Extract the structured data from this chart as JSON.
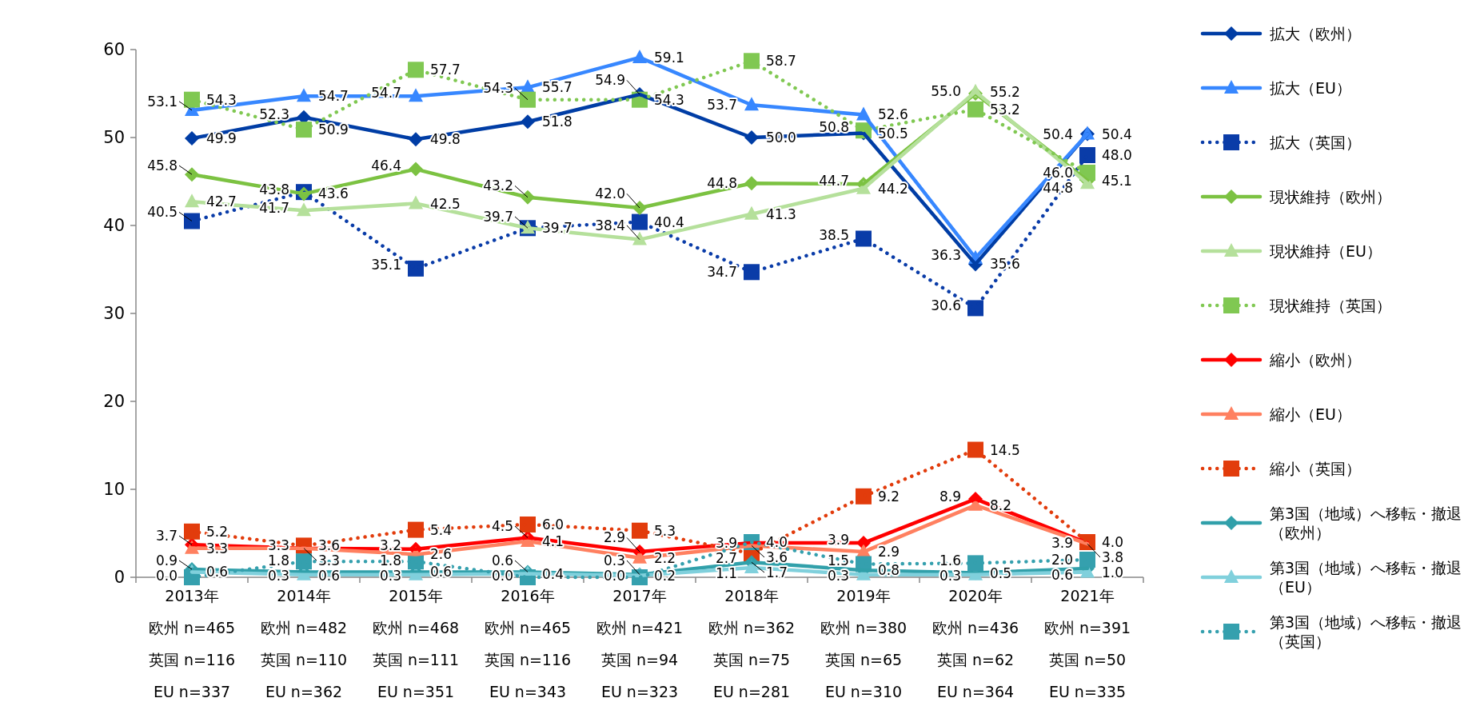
{
  "chart_data": {
    "type": "line",
    "categories": [
      "2013年",
      "2014年",
      "2015年",
      "2016年",
      "2017年",
      "2018年",
      "2019年",
      "2020年",
      "2021年"
    ],
    "annotations": [
      "欧州 n=465",
      "英国 n=116",
      "EU n=337",
      "欧州 n=482",
      "英国 n=110",
      "EU n=362",
      "欧州 n=468",
      "英国 n=111",
      "EU n=351",
      "欧州 n=465",
      "英国 n=116",
      "EU n=343",
      "欧州 n=421",
      "英国 n=94",
      "EU n=323",
      "欧州 n=362",
      "英国 n=75",
      "EU n=281",
      "欧州 n=380",
      "英国 n=65",
      "EU n=310",
      "欧州 n=436",
      "英国 n=62",
      "EU n=364",
      "欧州 n=391",
      "英国 n=50",
      "EU n=335"
    ],
    "ylim": [
      0,
      60
    ],
    "yticks": [
      0,
      10,
      20,
      30,
      40,
      50,
      60
    ],
    "grid": false,
    "legend": "right",
    "series": [
      {
        "name": "拡大（欧州）",
        "color": "#003da5",
        "marker": "diamond",
        "line_style": "solid",
        "values": [
          49.9,
          52.3,
          49.8,
          51.8,
          54.9,
          50.0,
          50.5,
          35.6,
          50.4
        ],
        "value_labels": [
          "49.9",
          "52.3",
          "49.8",
          "51.8",
          "54.9",
          "50.0",
          "50.5",
          "35.6",
          "50.4"
        ]
      },
      {
        "name": "拡大（EU）",
        "color": "#3787ff",
        "marker": "triangle",
        "line_style": "solid",
        "values": [
          53.1,
          54.7,
          54.7,
          55.7,
          59.1,
          53.7,
          52.6,
          36.3,
          50.4
        ],
        "value_labels": [
          "53.1",
          "54.7",
          "54.7",
          "55.7",
          "59.1",
          "53.7",
          "52.6",
          "36.3",
          "50.4"
        ]
      },
      {
        "name": "拡大（英国）",
        "color": "#0a3ca8",
        "marker": "square",
        "line_style": "dotted",
        "values": [
          40.5,
          43.8,
          35.1,
          39.7,
          40.4,
          34.7,
          38.5,
          30.6,
          48.0
        ],
        "value_labels": [
          "40.5",
          "43.8",
          "35.1",
          "39.7",
          "40.4",
          "34.7",
          "38.5",
          "30.6",
          "48.0"
        ]
      },
      {
        "name": "現状維持（欧州）",
        "color": "#7cc242",
        "marker": "diamond",
        "line_style": "solid",
        "values": [
          45.8,
          43.6,
          46.4,
          43.2,
          42.0,
          44.8,
          44.7,
          55.0,
          45.1
        ],
        "value_labels": [
          "45.8",
          "43.6",
          "46.4",
          "43.2",
          "42.0",
          "44.8",
          "44.7",
          "55.0",
          "45.1"
        ]
      },
      {
        "name": "現状維持（EU）",
        "color": "#b5e09b",
        "marker": "triangle",
        "line_style": "solid",
        "values": [
          42.7,
          41.7,
          42.5,
          39.7,
          38.4,
          41.3,
          44.2,
          55.2,
          44.8
        ],
        "value_labels": [
          "42.7",
          "41.7",
          "42.5",
          "39.7",
          "38.4",
          "41.3",
          "44.2",
          "55.2",
          "44.8"
        ]
      },
      {
        "name": "現状維持（英国）",
        "color": "#80c852",
        "marker": "square",
        "line_style": "dotted",
        "values": [
          54.3,
          50.9,
          57.7,
          54.3,
          54.3,
          58.7,
          50.8,
          53.2,
          46.0
        ],
        "value_labels": [
          "54.3",
          "50.9",
          "57.7",
          "54.3",
          "54.3",
          "58.7",
          "50.8",
          "53.2",
          "46.0"
        ]
      },
      {
        "name": "縮小（欧州）",
        "color": "#ff0000",
        "marker": "diamond",
        "line_style": "solid",
        "values": [
          3.7,
          3.3,
          3.2,
          4.5,
          2.9,
          3.9,
          3.9,
          8.9,
          3.9
        ],
        "value_labels": [
          "3.7",
          "3.3",
          "3.2",
          "4.5",
          "2.9",
          "3.9",
          "3.9",
          "8.9",
          "3.9"
        ]
      },
      {
        "name": "縮小（EU）",
        "color": "#ff8060",
        "marker": "triangle",
        "line_style": "solid",
        "values": [
          3.3,
          3.3,
          2.6,
          4.1,
          2.2,
          3.6,
          2.9,
          8.2,
          3.8
        ],
        "value_labels": [
          "3.3",
          "3.3",
          "2.6",
          "4.1",
          "2.2",
          "3.6",
          "2.9",
          "8.2",
          "3.8"
        ]
      },
      {
        "name": "縮小（英国）",
        "color": "#e23c0c",
        "marker": "square",
        "line_style": "dotted",
        "values": [
          5.2,
          3.6,
          5.4,
          6.0,
          5.3,
          2.7,
          9.2,
          14.5,
          4.0
        ],
        "value_labels": [
          "5.2",
          "3.6",
          "5.4",
          "6.0",
          "5.3",
          "2.7",
          "9.2",
          "14.5",
          "4.0"
        ]
      },
      {
        "name": "第3国（地域）へ移転・撤退（欧州）",
        "color": "#31a0aa",
        "marker": "diamond",
        "line_style": "solid",
        "values": [
          0.9,
          0.6,
          0.6,
          0.6,
          0.3,
          1.7,
          0.8,
          0.5,
          1.0
        ],
        "value_labels": [
          "0.9",
          "0.6",
          "0.6",
          "0.6",
          "0.3",
          "1.7",
          "0.8",
          "0.5",
          "1.0"
        ]
      },
      {
        "name": "第3国（地域）へ移転・撤退（EU）",
        "color": "#80d0dc",
        "marker": "triangle",
        "line_style": "solid",
        "values": [
          0.6,
          0.3,
          0.3,
          0.4,
          0.2,
          1.1,
          0.3,
          0.3,
          0.6
        ],
        "value_labels": [
          "0.6",
          "0.3",
          "0.3",
          "0.4",
          "0.2",
          "1.1",
          "0.3",
          "0.3",
          "0.6"
        ]
      },
      {
        "name": "第3国（地域）へ移転・撤退（英国）",
        "color": "#35a0ae",
        "marker": "square",
        "line_style": "dotted",
        "values": [
          0.0,
          1.8,
          1.8,
          0.0,
          0.0,
          4.0,
          1.5,
          1.6,
          2.0
        ],
        "value_labels": [
          "0.0",
          "1.8",
          "1.8",
          "0.0",
          "0.0",
          "4.0",
          "1.5",
          "1.6",
          "2.0"
        ]
      }
    ]
  }
}
